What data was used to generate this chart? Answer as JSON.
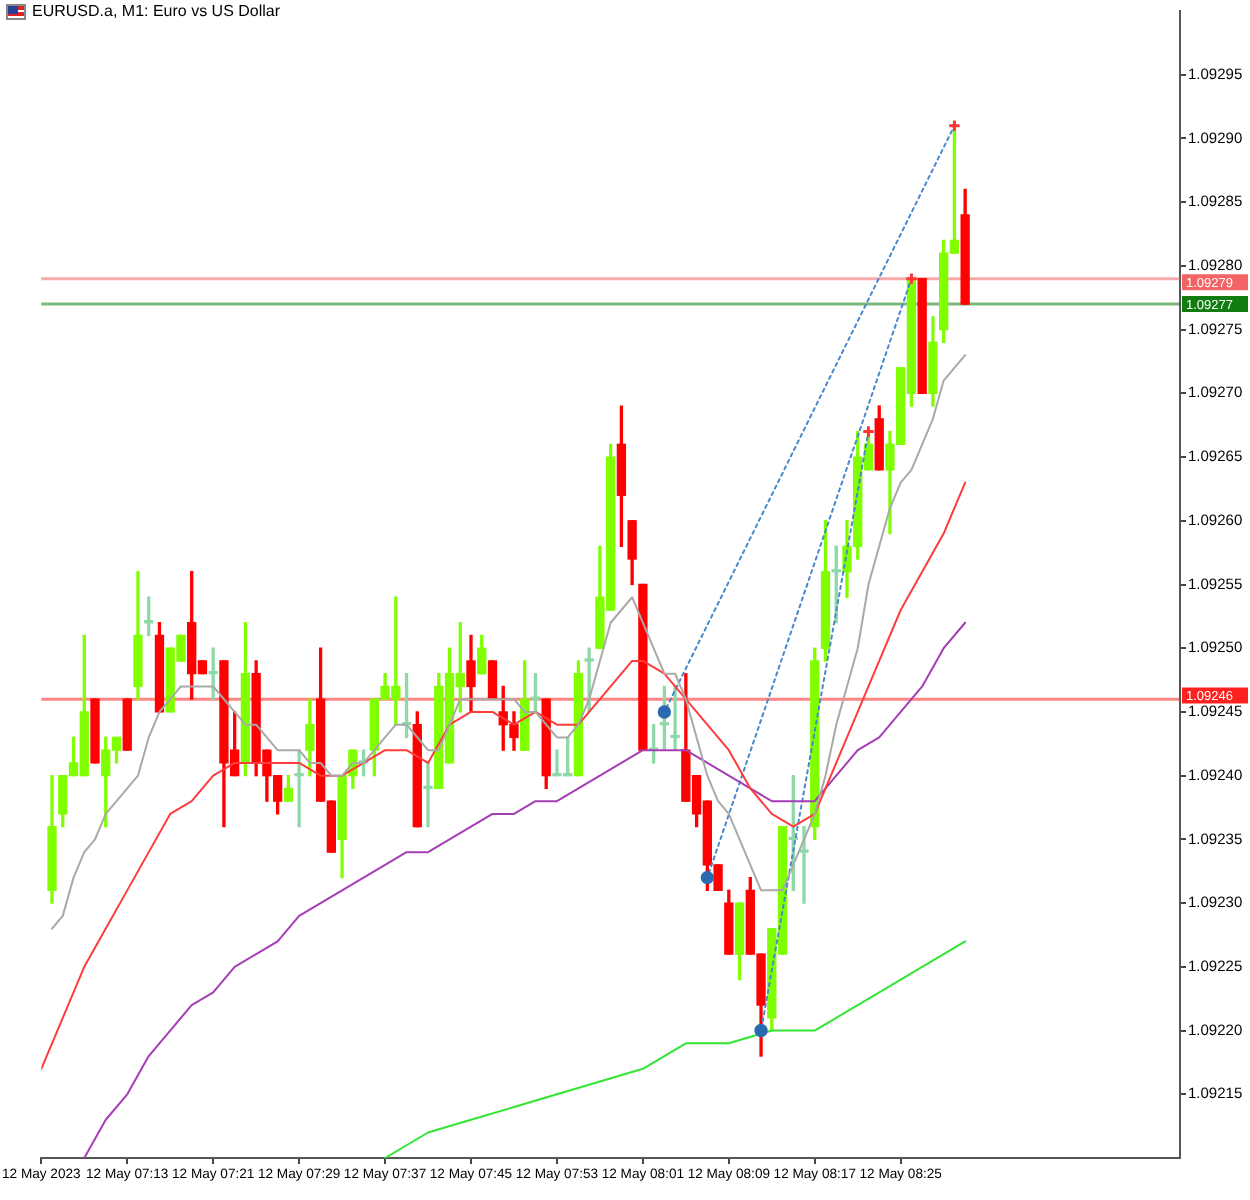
{
  "chart_data": {
    "type": "candlestick",
    "title": "EURUSD.a, M1: Euro vs US Dollar",
    "x": [
      "2023-05-12T07:06",
      "2023-05-12T07:07",
      "2023-05-12T07:08",
      "2023-05-12T07:09",
      "2023-05-12T07:10",
      "2023-05-12T07:11",
      "2023-05-12T07:12",
      "2023-05-12T07:13",
      "2023-05-12T07:14",
      "2023-05-12T07:15",
      "2023-05-12T07:16",
      "2023-05-12T07:17",
      "2023-05-12T07:18",
      "2023-05-12T07:19",
      "2023-05-12T07:20",
      "2023-05-12T07:21",
      "2023-05-12T07:22",
      "2023-05-12T07:23",
      "2023-05-12T07:24",
      "2023-05-12T07:25",
      "2023-05-12T07:26",
      "2023-05-12T07:27",
      "2023-05-12T07:28",
      "2023-05-12T07:29",
      "2023-05-12T07:30",
      "2023-05-12T07:31",
      "2023-05-12T07:32",
      "2023-05-12T07:33",
      "2023-05-12T07:34",
      "2023-05-12T07:35",
      "2023-05-12T07:36",
      "2023-05-12T07:37",
      "2023-05-12T07:38",
      "2023-05-12T07:39",
      "2023-05-12T07:40",
      "2023-05-12T07:41",
      "2023-05-12T07:42",
      "2023-05-12T07:43",
      "2023-05-12T07:44",
      "2023-05-12T07:45",
      "2023-05-12T07:46",
      "2023-05-12T07:47",
      "2023-05-12T07:48",
      "2023-05-12T07:49",
      "2023-05-12T07:50",
      "2023-05-12T07:51",
      "2023-05-12T07:52",
      "2023-05-12T07:53",
      "2023-05-12T07:54",
      "2023-05-12T07:55",
      "2023-05-12T07:56",
      "2023-05-12T07:57",
      "2023-05-12T07:58",
      "2023-05-12T07:59",
      "2023-05-12T08:00",
      "2023-05-12T08:01",
      "2023-05-12T08:02",
      "2023-05-12T08:03",
      "2023-05-12T08:04",
      "2023-05-12T08:05",
      "2023-05-12T08:06",
      "2023-05-12T08:07",
      "2023-05-12T08:08",
      "2023-05-12T08:09",
      "2023-05-12T08:10",
      "2023-05-12T08:11",
      "2023-05-12T08:12",
      "2023-05-12T08:13",
      "2023-05-12T08:14",
      "2023-05-12T08:15",
      "2023-05-12T08:16",
      "2023-05-12T08:17",
      "2023-05-12T08:18",
      "2023-05-12T08:19",
      "2023-05-12T08:20",
      "2023-05-12T08:21",
      "2023-05-12T08:22",
      "2023-05-12T08:23",
      "2023-05-12T08:24",
      "2023-05-12T08:25",
      "2023-05-12T08:26",
      "2023-05-12T08:27",
      "2023-05-12T08:28",
      "2023-05-12T08:29",
      "2023-05-12T08:30",
      "2023-05-12T08:31"
    ],
    "ohlc": [
      [
        1.09231,
        1.0924,
        1.0923,
        1.09236
      ],
      [
        1.09237,
        1.0924,
        1.09236,
        1.0924
      ],
      [
        1.0924,
        1.09243,
        1.0924,
        1.09241
      ],
      [
        1.0924,
        1.09251,
        1.0924,
        1.09245
      ],
      [
        1.09246,
        1.09246,
        1.09241,
        1.09241
      ],
      [
        1.0924,
        1.09243,
        1.09236,
        1.09242
      ],
      [
        1.09242,
        1.09243,
        1.09241,
        1.09243
      ],
      [
        1.09246,
        1.09246,
        1.09242,
        1.09242
      ],
      [
        1.09247,
        1.09256,
        1.09246,
        1.09251
      ],
      [
        1.09252,
        1.09254,
        1.09251,
        1.09252
      ],
      [
        1.09251,
        1.09252,
        1.09245,
        1.09245
      ],
      [
        1.09245,
        1.0925,
        1.09245,
        1.0925
      ],
      [
        1.09249,
        1.09251,
        1.09249,
        1.09251
      ],
      [
        1.09252,
        1.09256,
        1.09246,
        1.09248
      ],
      [
        1.09249,
        1.09249,
        1.09248,
        1.09248
      ],
      [
        1.09248,
        1.0925,
        1.09246,
        1.09248
      ],
      [
        1.09249,
        1.09249,
        1.09236,
        1.09241
      ],
      [
        1.09242,
        1.09245,
        1.0924,
        1.0924
      ],
      [
        1.09241,
        1.09252,
        1.0924,
        1.09248
      ],
      [
        1.09248,
        1.09249,
        1.0924,
        1.09241
      ],
      [
        1.09242,
        1.09242,
        1.09238,
        1.0924
      ],
      [
        1.0924,
        1.0924,
        1.09237,
        1.09238
      ],
      [
        1.09238,
        1.0924,
        1.09238,
        1.09239
      ],
      [
        1.0924,
        1.09242,
        1.09236,
        1.0924
      ],
      [
        1.09242,
        1.09246,
        1.0924,
        1.09244
      ],
      [
        1.09246,
        1.0925,
        1.09238,
        1.09238
      ],
      [
        1.09238,
        1.09238,
        1.09234,
        1.09234
      ],
      [
        1.09235,
        1.0924,
        1.09232,
        1.0924
      ],
      [
        1.0924,
        1.09242,
        1.09239,
        1.09242
      ],
      [
        1.09241,
        1.09242,
        1.0924,
        1.09241
      ],
      [
        1.09242,
        1.09246,
        1.0924,
        1.09246
      ],
      [
        1.09246,
        1.09248,
        1.09246,
        1.09247
      ],
      [
        1.09246,
        1.09254,
        1.09244,
        1.09247
      ],
      [
        1.09244,
        1.09248,
        1.09243,
        1.09244
      ],
      [
        1.09244,
        1.09245,
        1.09236,
        1.09236
      ],
      [
        1.09239,
        1.09241,
        1.09236,
        1.09239
      ],
      [
        1.09239,
        1.09248,
        1.09239,
        1.09247
      ],
      [
        1.09241,
        1.0925,
        1.09241,
        1.09248
      ],
      [
        1.09247,
        1.09252,
        1.09245,
        1.09248
      ],
      [
        1.09249,
        1.09251,
        1.09245,
        1.09247
      ],
      [
        1.09248,
        1.09251,
        1.09248,
        1.0925
      ],
      [
        1.09249,
        1.09249,
        1.09246,
        1.09246
      ],
      [
        1.09245,
        1.09247,
        1.09242,
        1.09244
      ],
      [
        1.09244,
        1.09245,
        1.09242,
        1.09243
      ],
      [
        1.09242,
        1.09249,
        1.09242,
        1.09246
      ],
      [
        1.09246,
        1.09248,
        1.09245,
        1.09246
      ],
      [
        1.09246,
        1.09246,
        1.09239,
        1.0924
      ],
      [
        1.0924,
        1.09242,
        1.0924,
        1.0924
      ],
      [
        1.0924,
        1.09243,
        1.0924,
        1.0924
      ],
      [
        1.0924,
        1.09249,
        1.0924,
        1.09248
      ],
      [
        1.09249,
        1.0925,
        1.09245,
        1.09249
      ],
      [
        1.0925,
        1.09258,
        1.0925,
        1.09254
      ],
      [
        1.09253,
        1.09266,
        1.09253,
        1.09265
      ],
      [
        1.09266,
        1.09269,
        1.09258,
        1.09262
      ],
      [
        1.0926,
        1.0926,
        1.09255,
        1.09257
      ],
      [
        1.09255,
        1.09255,
        1.09242,
        1.09242
      ],
      [
        1.09242,
        1.09244,
        1.09241,
        1.09242
      ],
      [
        1.09244,
        1.09247,
        1.09242,
        1.09244
      ],
      [
        1.09243,
        1.09247,
        1.09242,
        1.09243
      ],
      [
        1.09242,
        1.09248,
        1.09238,
        1.09238
      ],
      [
        1.0924,
        1.0924,
        1.09236,
        1.09237
      ],
      [
        1.09238,
        1.09238,
        1.09231,
        1.09233
      ],
      [
        1.09233,
        1.09233,
        1.09231,
        1.09231
      ],
      [
        1.0923,
        1.09231,
        1.09226,
        1.09226
      ],
      [
        1.09226,
        1.0923,
        1.09224,
        1.0923
      ],
      [
        1.09231,
        1.09232,
        1.09226,
        1.09226
      ],
      [
        1.09226,
        1.09226,
        1.09218,
        1.09222
      ],
      [
        1.09221,
        1.09228,
        1.0922,
        1.09228
      ],
      [
        1.09226,
        1.09236,
        1.09226,
        1.09236
      ],
      [
        1.09235,
        1.0924,
        1.09231,
        1.09235
      ],
      [
        1.09234,
        1.09236,
        1.0923,
        1.09234
      ],
      [
        1.09236,
        1.0925,
        1.09235,
        1.09249
      ],
      [
        1.0925,
        1.0926,
        1.09249,
        1.09256
      ],
      [
        1.09256,
        1.09258,
        1.09252,
        1.09256
      ],
      [
        1.09256,
        1.0926,
        1.09254,
        1.09258
      ],
      [
        1.09258,
        1.09267,
        1.09257,
        1.09265
      ],
      [
        1.09264,
        1.09267,
        1.09264,
        1.09266
      ],
      [
        1.09268,
        1.09269,
        1.09264,
        1.09264
      ],
      [
        1.09264,
        1.09267,
        1.09259,
        1.09266
      ],
      [
        1.09266,
        1.09272,
        1.09266,
        1.09272
      ],
      [
        1.0927,
        1.09279,
        1.09269,
        1.09279
      ],
      [
        1.09279,
        1.09279,
        1.0927,
        1.0927
      ],
      [
        1.0927,
        1.09276,
        1.09269,
        1.09274
      ],
      [
        1.09275,
        1.09282,
        1.09274,
        1.09281
      ],
      [
        1.09281,
        1.09291,
        1.09281,
        1.09282
      ],
      [
        1.09284,
        1.09286,
        1.09277,
        1.09277
      ]
    ],
    "colors": [
      "#80ff00",
      "#80ff00",
      "#80ff00",
      "#80ff00",
      "#ff0000",
      "#80ff00",
      "#80ff00",
      "#ff0000",
      "#80ff00",
      "#8fd9a8",
      "#ff0000",
      "#80ff00",
      "#80ff00",
      "#ff0000",
      "#ff0000",
      "#8fd9a8",
      "#ff0000",
      "#ff0000",
      "#80ff00",
      "#ff0000",
      "#ff0000",
      "#ff0000",
      "#80ff00",
      "#8fd9a8",
      "#80ff00",
      "#ff0000",
      "#ff0000",
      "#80ff00",
      "#80ff00",
      "#8fd9a8",
      "#80ff00",
      "#80ff00",
      "#80ff00",
      "#8fd9a8",
      "#ff0000",
      "#8fd9a8",
      "#80ff00",
      "#80ff00",
      "#80ff00",
      "#ff0000",
      "#80ff00",
      "#ff0000",
      "#ff0000",
      "#ff0000",
      "#80ff00",
      "#8fd9a8",
      "#ff0000",
      "#8fd9a8",
      "#8fd9a8",
      "#80ff00",
      "#8fd9a8",
      "#80ff00",
      "#80ff00",
      "#ff0000",
      "#ff0000",
      "#ff0000",
      "#8fd9a8",
      "#8fd9a8",
      "#8fd9a8",
      "#ff0000",
      "#ff0000",
      "#ff0000",
      "#ff0000",
      "#ff0000",
      "#80ff00",
      "#ff0000",
      "#ff0000",
      "#80ff00",
      "#80ff00",
      "#8fd9a8",
      "#8fd9a8",
      "#80ff00",
      "#80ff00",
      "#8fd9a8",
      "#80ff00",
      "#80ff00",
      "#80ff00",
      "#ff0000",
      "#80ff00",
      "#80ff00",
      "#80ff00",
      "#ff0000",
      "#80ff00",
      "#80ff00",
      "#80ff00",
      "#ff0000"
    ],
    "series": [
      {
        "type": "line",
        "color": "#a9a9a9",
        "values": [
          1.09228,
          1.09229,
          1.09232,
          1.09234,
          1.09235,
          1.09237,
          1.09238,
          1.09239,
          1.0924,
          1.09243,
          1.09245,
          1.09246,
          1.09247,
          1.09247,
          1.09247,
          1.09247,
          1.09246,
          1.09245,
          1.09244,
          1.09244,
          1.09243,
          1.09242,
          1.09242,
          1.09242,
          1.09241,
          1.09241,
          1.0924,
          1.0924,
          1.09241,
          1.09241,
          1.09242,
          1.09243,
          1.09244,
          1.09244,
          1.09243,
          1.09242,
          1.09242,
          1.09244,
          1.09246,
          1.09246,
          1.09246,
          1.09246,
          1.09246,
          1.09246,
          1.09245,
          1.09245,
          1.09244,
          1.09243,
          1.09243,
          1.09244,
          1.09246,
          1.09249,
          1.09252,
          1.09253,
          1.09254,
          1.09252,
          1.0925,
          1.09248,
          1.09248,
          1.09246,
          1.09243,
          1.0924,
          1.09238,
          1.09237,
          1.09235,
          1.09233,
          1.09231,
          1.09231,
          1.09231,
          1.09233,
          1.09235,
          1.09237,
          1.0924,
          1.09244,
          1.09247,
          1.0925,
          1.09255,
          1.09258,
          1.09261,
          1.09263,
          1.09264,
          1.09266,
          1.09268,
          1.09271,
          1.09272,
          1.09273
        ]
      },
      {
        "type": "line",
        "color": "#ff3c3c",
        "x": [
          "2023-05-12T07:05",
          "2023-05-12T07:07",
          "2023-05-12T07:09",
          "2023-05-12T07:11",
          "2023-05-12T07:13",
          "2023-05-12T07:15",
          "2023-05-12T07:17",
          "2023-05-12T07:19",
          "2023-05-12T07:21",
          "2023-05-12T07:23",
          "2023-05-12T07:25",
          "2023-05-12T07:27",
          "2023-05-12T07:29",
          "2023-05-12T07:31",
          "2023-05-12T07:33",
          "2023-05-12T07:35",
          "2023-05-12T07:37",
          "2023-05-12T07:39",
          "2023-05-12T07:41",
          "2023-05-12T07:43",
          "2023-05-12T07:45",
          "2023-05-12T07:47",
          "2023-05-12T07:49",
          "2023-05-12T07:51",
          "2023-05-12T07:53",
          "2023-05-12T07:55",
          "2023-05-12T07:57",
          "2023-05-12T07:59",
          "2023-05-12T08:00",
          "2023-05-12T08:01",
          "2023-05-12T08:03",
          "2023-05-12T08:05",
          "2023-05-12T08:07",
          "2023-05-12T08:09",
          "2023-05-12T08:11",
          "2023-05-12T08:13",
          "2023-05-12T08:15",
          "2023-05-12T08:17",
          "2023-05-12T08:19",
          "2023-05-12T08:21",
          "2023-05-12T08:23",
          "2023-05-12T08:25",
          "2023-05-12T08:27",
          "2023-05-12T08:29",
          "2023-05-12T08:31"
        ],
        "values": [
          1.09217,
          1.09221,
          1.09225,
          1.09228,
          1.09231,
          1.09234,
          1.09237,
          1.09238,
          1.0924,
          1.09241,
          1.09241,
          1.09241,
          1.09241,
          1.0924,
          1.0924,
          1.09241,
          1.09242,
          1.09242,
          1.09241,
          1.09244,
          1.09245,
          1.09245,
          1.09244,
          1.09245,
          1.09244,
          1.09244,
          1.09246,
          1.09248,
          1.09249,
          1.09249,
          1.09248,
          1.09246,
          1.09244,
          1.09242,
          1.09239,
          1.09237,
          1.09236,
          1.09237,
          1.09241,
          1.09245,
          1.09249,
          1.09253,
          1.09256,
          1.09259,
          1.09263
        ]
      },
      {
        "type": "line",
        "color": "#a53db5",
        "x": [
          "2023-05-12T07:09",
          "2023-05-12T07:11",
          "2023-05-12T07:13",
          "2023-05-12T07:15",
          "2023-05-12T07:17",
          "2023-05-12T07:19",
          "2023-05-12T07:21",
          "2023-05-12T07:23",
          "2023-05-12T07:25",
          "2023-05-12T07:27",
          "2023-05-12T07:29",
          "2023-05-12T07:31",
          "2023-05-12T07:33",
          "2023-05-12T07:35",
          "2023-05-12T07:37",
          "2023-05-12T07:39",
          "2023-05-12T07:41",
          "2023-05-12T07:43",
          "2023-05-12T07:45",
          "2023-05-12T07:47",
          "2023-05-12T07:49",
          "2023-05-12T07:51",
          "2023-05-12T07:53",
          "2023-05-12T07:55",
          "2023-05-12T07:57",
          "2023-05-12T07:59",
          "2023-05-12T08:01",
          "2023-05-12T08:03",
          "2023-05-12T08:05",
          "2023-05-12T08:07",
          "2023-05-12T08:09",
          "2023-05-12T08:11",
          "2023-05-12T08:13",
          "2023-05-12T08:15",
          "2023-05-12T08:17",
          "2023-05-12T08:19",
          "2023-05-12T08:21",
          "2023-05-12T08:23",
          "2023-05-12T08:25",
          "2023-05-12T08:27",
          "2023-05-12T08:29",
          "2023-05-12T08:31"
        ],
        "values": [
          1.0921,
          1.09213,
          1.09215,
          1.09218,
          1.0922,
          1.09222,
          1.09223,
          1.09225,
          1.09226,
          1.09227,
          1.09229,
          1.0923,
          1.09231,
          1.09232,
          1.09233,
          1.09234,
          1.09234,
          1.09235,
          1.09236,
          1.09237,
          1.09237,
          1.09238,
          1.09238,
          1.09239,
          1.0924,
          1.09241,
          1.09242,
          1.09242,
          1.09242,
          1.09241,
          1.0924,
          1.09239,
          1.09238,
          1.09238,
          1.09238,
          1.0924,
          1.09242,
          1.09243,
          1.09245,
          1.09247,
          1.0925,
          1.09252
        ]
      },
      {
        "type": "line",
        "color": "#33e633",
        "x": [
          "2023-05-12T07:37",
          "2023-05-12T07:39",
          "2023-05-12T07:41",
          "2023-05-12T07:45",
          "2023-05-12T07:49",
          "2023-05-12T07:53",
          "2023-05-12T07:57",
          "2023-05-12T08:01",
          "2023-05-12T08:03",
          "2023-05-12T08:05",
          "2023-05-12T08:09",
          "2023-05-12T08:13",
          "2023-05-12T08:17",
          "2023-05-12T08:19",
          "2023-05-12T08:21",
          "2023-05-12T08:23",
          "2023-05-12T08:25",
          "2023-05-12T08:27",
          "2023-05-12T08:29",
          "2023-05-12T08:31"
        ],
        "values": [
          1.0921,
          1.09211,
          1.09212,
          1.09213,
          1.09214,
          1.09215,
          1.09216,
          1.09217,
          1.09218,
          1.09219,
          1.09219,
          1.0922,
          1.0922,
          1.09221,
          1.09222,
          1.09223,
          1.09224,
          1.09225,
          1.09226,
          1.09227
        ]
      },
      {
        "type": "line",
        "color": "#4a88cc",
        "line_style": "dotted",
        "x": [
          "2023-05-12T08:03",
          "2023-05-12T08:30"
        ],
        "values": [
          1.09245,
          1.09291
        ]
      },
      {
        "type": "line",
        "color": "#4a88cc",
        "line_style": "dotted",
        "x": [
          "2023-05-12T08:07",
          "2023-05-12T08:26"
        ],
        "values": [
          1.09232,
          1.09279
        ]
      },
      {
        "type": "line",
        "color": "#4a88cc",
        "line_style": "dotted",
        "x": [
          "2023-05-12T08:12",
          "2023-05-12T08:22"
        ],
        "values": [
          1.0922,
          1.09267
        ]
      },
      {
        "type": "scatter",
        "color": "#2a6ab0",
        "marker": "circle",
        "x": [
          "2023-05-12T08:03",
          "2023-05-12T08:07",
          "2023-05-12T08:12"
        ],
        "values": [
          1.09245,
          1.09232,
          1.0922
        ]
      },
      {
        "type": "scatter",
        "color": "#ff3333",
        "marker": "cross",
        "x": [
          "2023-05-12T08:22",
          "2023-05-12T08:26",
          "2023-05-12T08:30"
        ],
        "values": [
          1.09267,
          1.09279,
          1.09291
        ]
      }
    ],
    "xlim": [
      "2023-05-12T07:05",
      "2023-05-12T08:51"
    ],
    "xticks": [
      {
        "value": "2023-05-12T07:05",
        "label": "12 May 2023"
      },
      {
        "value": "2023-05-12T07:13",
        "label": "12 May 07:13"
      },
      {
        "value": "2023-05-12T07:21",
        "label": "12 May 07:21"
      },
      {
        "value": "2023-05-12T07:29",
        "label": "12 May 07:29"
      },
      {
        "value": "2023-05-12T07:37",
        "label": "12 May 07:37"
      },
      {
        "value": "2023-05-12T07:45",
        "label": "12 May 07:45"
      },
      {
        "value": "2023-05-12T07:53",
        "label": "12 May 07:53"
      },
      {
        "value": "2023-05-12T08:01",
        "label": "12 May 08:01"
      },
      {
        "value": "2023-05-12T08:09",
        "label": "12 May 08:09"
      },
      {
        "value": "2023-05-12T08:17",
        "label": "12 May 08:17"
      },
      {
        "value": "2023-05-12T08:25",
        "label": "12 May 08:25"
      }
    ],
    "ylim": [
      1.0921,
      1.093
    ],
    "yticks": [
      1.09215,
      {
        "value": 1.0922,
        "label": "1.09220"
      },
      1.09225,
      {
        "value": 1.0923,
        "label": "1.09230"
      },
      1.09235,
      {
        "value": 1.0924,
        "label": "1.09240"
      },
      1.09245,
      {
        "value": 1.0925,
        "label": "1.09250"
      },
      1.09255,
      {
        "value": 1.0926,
        "label": "1.09260"
      },
      1.09265,
      {
        "value": 1.0927,
        "label": "1.09270"
      },
      1.09275,
      {
        "value": 1.0928,
        "label": "1.09280"
      },
      1.09285,
      {
        "value": 1.0929,
        "label": "1.09290"
      },
      1.09295
    ],
    "ref_lines": [
      {
        "axis": "y",
        "value": 1.09279,
        "label": "1.09279",
        "color": "#f26464"
      },
      {
        "axis": "y",
        "value": 1.09277,
        "label": "1.09277",
        "color": "#117d11"
      },
      {
        "axis": "y",
        "value": 1.09246,
        "label": "1.09246",
        "color": "#ff2020"
      }
    ]
  }
}
